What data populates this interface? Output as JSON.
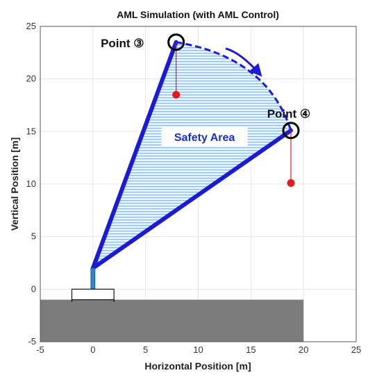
{
  "chart_data": {
    "type": "diagram-plot",
    "title": "AML Simulation (with AML Control)",
    "xlabel": "Horizontal Position [m]",
    "ylabel": "Vertical Position [m]",
    "xlim": [
      -5,
      25
    ],
    "ylim": [
      -5,
      25
    ],
    "x_ticks": [
      -5,
      0,
      5,
      10,
      15,
      20,
      25
    ],
    "y_ticks": [
      -5,
      0,
      5,
      10,
      15,
      20,
      25
    ],
    "x_tick_labels": [
      "-5",
      "0",
      "5",
      "10",
      "15",
      "20",
      "25"
    ],
    "y_tick_labels": [
      "-5",
      "0",
      "5",
      "10",
      "15",
      "20",
      "25"
    ],
    "grid": true,
    "pivot": [
      0,
      2
    ],
    "mast": {
      "x": 0,
      "y_bottom": 0,
      "y_top": 2
    },
    "base": {
      "x_left": -2,
      "x_right": 2,
      "y": 0,
      "foot_y": -1
    },
    "ground": {
      "x_left": -5,
      "x_right": 20,
      "y_top": -1,
      "y_bottom": -5
    },
    "boom_start": {
      "x": 7.9,
      "y": 23.5
    },
    "boom_end": {
      "x": 18.8,
      "y": 15.1
    },
    "load_start": {
      "x": 7.9,
      "y": 18.5
    },
    "load_end": {
      "x": 18.8,
      "y": 10.1
    },
    "point_labels": [
      {
        "name": "point-3",
        "text": "Point ③",
        "x": 2.8,
        "y": 23.4
      },
      {
        "name": "point-4",
        "text": "Point ④",
        "x": 18.6,
        "y": 16.7
      }
    ],
    "safety_area_label": {
      "text": "Safety Area",
      "x": 10.6,
      "y": 14.5
    },
    "colors": {
      "boom": "#1a1ad8",
      "area_hatch": "#6fa6e0",
      "area_edge": "#6aa8e2",
      "arc": "#1a1ad8",
      "load": "#e11a1a",
      "mast": "#2e86c8",
      "ground": "#7c7c7c",
      "grid": "#e6e6e6"
    }
  }
}
